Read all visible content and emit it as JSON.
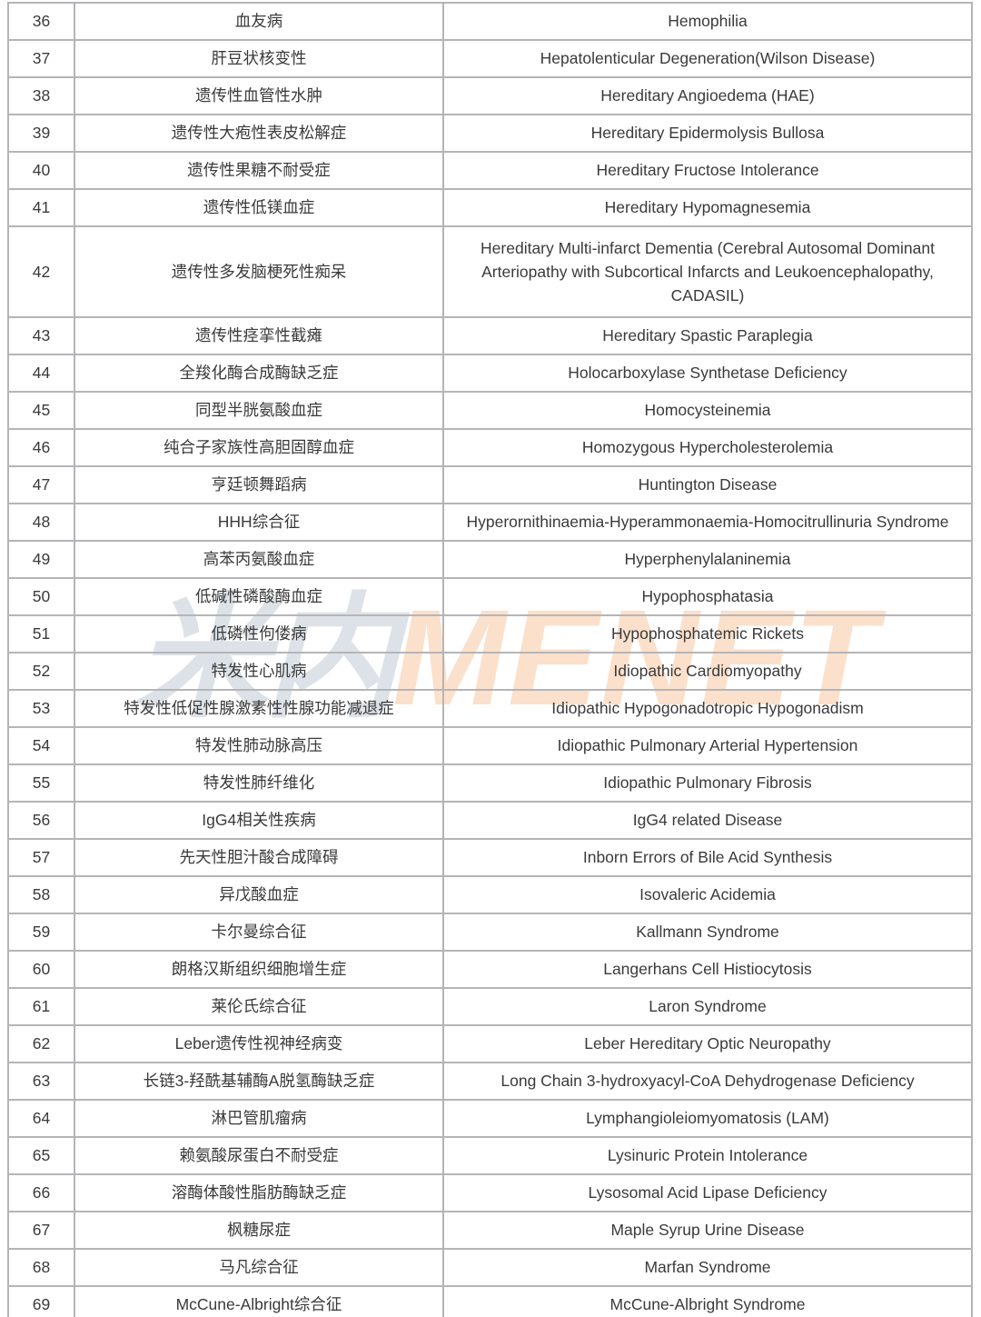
{
  "watermark": {
    "cn": "米内",
    "en": "MENET",
    "cn_color": "rgba(148,166,182,0.32)",
    "en_color": "rgba(242,145,70,0.28)"
  },
  "table": {
    "border_color": "#b5b5b8",
    "text_color": "#3a3a3a",
    "columns": [
      "number",
      "name_cn",
      "name_en"
    ],
    "rows": [
      {
        "no": "36",
        "cn": "血友病",
        "en": "Hemophilia"
      },
      {
        "no": "37",
        "cn": "肝豆状核变性",
        "en": "Hepatolenticular Degeneration(Wilson Disease)"
      },
      {
        "no": "38",
        "cn": "遗传性血管性水肿",
        "en": "Hereditary Angioedema (HAE)"
      },
      {
        "no": "39",
        "cn": "遗传性大疱性表皮松解症",
        "en": "Hereditary Epidermolysis Bullosa"
      },
      {
        "no": "40",
        "cn": "遗传性果糖不耐受症",
        "en": "Hereditary Fructose Intolerance"
      },
      {
        "no": "41",
        "cn": "遗传性低镁血症",
        "en": "Hereditary Hypomagnesemia"
      },
      {
        "no": "42",
        "cn": "遗传性多发脑梗死性痴呆",
        "en": "Hereditary Multi-infarct Dementia (Cerebral Autosomal Dominant Arteriopathy with Subcortical Infarcts and Leukoencephalopathy, CADASIL)",
        "tall": true
      },
      {
        "no": "43",
        "cn": "遗传性痉挛性截瘫",
        "en": "Hereditary Spastic Paraplegia"
      },
      {
        "no": "44",
        "cn": "全羧化酶合成酶缺乏症",
        "en": "Holocarboxylase Synthetase Deficiency"
      },
      {
        "no": "45",
        "cn": "同型半胱氨酸血症",
        "en": "Homocysteinemia"
      },
      {
        "no": "46",
        "cn": "纯合子家族性高胆固醇血症",
        "en": "Homozygous Hypercholesterolemia"
      },
      {
        "no": "47",
        "cn": "亨廷顿舞蹈病",
        "en": "Huntington Disease"
      },
      {
        "no": "48",
        "cn": "HHH综合征",
        "en": "Hyperornithinaemia-Hyperammonaemia-Homocitrullinuria Syndrome"
      },
      {
        "no": "49",
        "cn": "高苯丙氨酸血症",
        "en": "Hyperphenylalaninemia"
      },
      {
        "no": "50",
        "cn": "低碱性磷酸酶血症",
        "en": "Hypophosphatasia"
      },
      {
        "no": "51",
        "cn": "低磷性佝偻病",
        "en": "Hypophosphatemic Rickets"
      },
      {
        "no": "52",
        "cn": "特发性心肌病",
        "en": "Idiopathic Cardiomyopathy"
      },
      {
        "no": "53",
        "cn": "特发性低促性腺激素性性腺功能减退症",
        "en": "Idiopathic Hypogonadotropic Hypogonadism"
      },
      {
        "no": "54",
        "cn": "特发性肺动脉高压",
        "en": "Idiopathic Pulmonary Arterial Hypertension"
      },
      {
        "no": "55",
        "cn": "特发性肺纤维化",
        "en": "Idiopathic Pulmonary Fibrosis"
      },
      {
        "no": "56",
        "cn": "IgG4相关性疾病",
        "en": "IgG4 related Disease"
      },
      {
        "no": "57",
        "cn": "先天性胆汁酸合成障碍",
        "en": "Inborn Errors of Bile Acid Synthesis"
      },
      {
        "no": "58",
        "cn": "异戊酸血症",
        "en": "Isovaleric Acidemia"
      },
      {
        "no": "59",
        "cn": "卡尔曼综合征",
        "en": "Kallmann Syndrome"
      },
      {
        "no": "60",
        "cn": "朗格汉斯组织细胞增生症",
        "en": "Langerhans Cell Histiocytosis"
      },
      {
        "no": "61",
        "cn": "莱伦氏综合征",
        "en": "Laron Syndrome"
      },
      {
        "no": "62",
        "cn": "Leber遗传性视神经病变",
        "en": "Leber Hereditary Optic Neuropathy"
      },
      {
        "no": "63",
        "cn": "长链3-羟酰基辅酶A脱氢酶缺乏症",
        "en": "Long Chain 3-hydroxyacyl-CoA Dehydrogenase Deficiency"
      },
      {
        "no": "64",
        "cn": "淋巴管肌瘤病",
        "en": "Lymphangioleiomyomatosis (LAM)"
      },
      {
        "no": "65",
        "cn": "赖氨酸尿蛋白不耐受症",
        "en": "Lysinuric Protein Intolerance"
      },
      {
        "no": "66",
        "cn": "溶酶体酸性脂肪酶缺乏症",
        "en": "Lysosomal Acid Lipase Deficiency"
      },
      {
        "no": "67",
        "cn": "枫糖尿症",
        "en": "Maple Syrup Urine Disease"
      },
      {
        "no": "68",
        "cn": "马凡综合征",
        "en": "Marfan Syndrome"
      },
      {
        "no": "69",
        "cn": "McCune-Albright综合征",
        "en": "McCune-Albright Syndrome"
      }
    ]
  }
}
